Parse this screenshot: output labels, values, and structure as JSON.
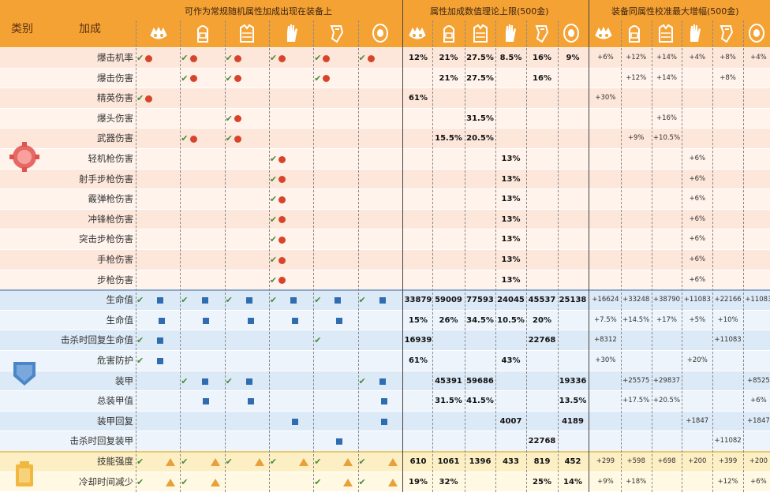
{
  "header": {
    "category_label": "类别",
    "bonus_label": "加成",
    "section1_title": "可作为常规随机属性加成出现在装备上",
    "section2_title": "属性加成数值理论上限(500金)",
    "section3_title": "装备同属性校准最大增幅(500金)"
  },
  "gear_icons": [
    "mask-icon",
    "backpack-icon",
    "vest-icon",
    "gloves-icon",
    "holster-icon",
    "kneepads-icon"
  ],
  "categories": [
    {
      "name": "offense",
      "icon": "offense-category-icon",
      "color": "#e0514f"
    },
    {
      "name": "defense",
      "icon": "defense-category-icon",
      "color": "#4a86c8"
    },
    {
      "name": "skill",
      "icon": "skill-category-icon",
      "color": "#f0b840"
    }
  ],
  "rows": [
    {
      "label": "爆击机率",
      "cat": "offense",
      "marks": [
        [
          1,
          1
        ],
        [
          1,
          1
        ],
        [
          1,
          1
        ],
        [
          1,
          1
        ],
        [
          1,
          1
        ],
        [
          1,
          1
        ]
      ],
      "max": [
        "12%",
        "21%",
        "27.5%",
        "8.5%",
        "16%",
        "9%"
      ],
      "inc": [
        "+6%",
        "+12%",
        "+14%",
        "+4%",
        "+8%",
        "+4%"
      ]
    },
    {
      "label": "爆击伤害",
      "cat": "offense",
      "marks": [
        [
          0,
          0
        ],
        [
          1,
          1
        ],
        [
          1,
          1
        ],
        [
          0,
          0
        ],
        [
          1,
          1
        ],
        [
          0,
          0
        ]
      ],
      "max": [
        "",
        "21%",
        "27.5%",
        "",
        "16%",
        ""
      ],
      "inc": [
        "",
        "+12%",
        "+14%",
        "",
        "+8%",
        ""
      ]
    },
    {
      "label": "精英伤害",
      "cat": "offense",
      "marks": [
        [
          1,
          1
        ],
        [
          0,
          0
        ],
        [
          0,
          0
        ],
        [
          0,
          0
        ],
        [
          0,
          0
        ],
        [
          0,
          0
        ]
      ],
      "max": [
        "61%",
        "",
        "",
        "",
        "",
        ""
      ],
      "inc": [
        "+30%",
        "",
        "",
        "",
        "",
        ""
      ]
    },
    {
      "label": "爆头伤害",
      "cat": "offense",
      "marks": [
        [
          0,
          0
        ],
        [
          0,
          0
        ],
        [
          1,
          1
        ],
        [
          0,
          0
        ],
        [
          0,
          0
        ],
        [
          0,
          0
        ]
      ],
      "max": [
        "",
        "",
        "31.5%",
        "",
        "",
        ""
      ],
      "inc": [
        "",
        "",
        "+16%",
        "",
        "",
        ""
      ]
    },
    {
      "label": "武器伤害",
      "cat": "offense",
      "marks": [
        [
          0,
          0
        ],
        [
          1,
          1
        ],
        [
          1,
          1
        ],
        [
          0,
          0
        ],
        [
          0,
          0
        ],
        [
          0,
          0
        ]
      ],
      "max": [
        "",
        "15.5%",
        "20.5%",
        "",
        "",
        ""
      ],
      "inc": [
        "",
        "+9%",
        "+10.5%",
        "",
        "",
        ""
      ]
    },
    {
      "label": "轻机枪伤害",
      "cat": "offense",
      "marks": [
        [
          0,
          0
        ],
        [
          0,
          0
        ],
        [
          0,
          0
        ],
        [
          1,
          1
        ],
        [
          0,
          0
        ],
        [
          0,
          0
        ]
      ],
      "max": [
        "",
        "",
        "",
        "13%",
        "",
        ""
      ],
      "inc": [
        "",
        "",
        "",
        "+6%",
        "",
        ""
      ]
    },
    {
      "label": "射手步枪伤害",
      "cat": "offense",
      "marks": [
        [
          0,
          0
        ],
        [
          0,
          0
        ],
        [
          0,
          0
        ],
        [
          1,
          1
        ],
        [
          0,
          0
        ],
        [
          0,
          0
        ]
      ],
      "max": [
        "",
        "",
        "",
        "13%",
        "",
        ""
      ],
      "inc": [
        "",
        "",
        "",
        "+6%",
        "",
        ""
      ]
    },
    {
      "label": "霰弹枪伤害",
      "cat": "offense",
      "marks": [
        [
          0,
          0
        ],
        [
          0,
          0
        ],
        [
          0,
          0
        ],
        [
          1,
          1
        ],
        [
          0,
          0
        ],
        [
          0,
          0
        ]
      ],
      "max": [
        "",
        "",
        "",
        "13%",
        "",
        ""
      ],
      "inc": [
        "",
        "",
        "",
        "+6%",
        "",
        ""
      ]
    },
    {
      "label": "冲锋枪伤害",
      "cat": "offense",
      "marks": [
        [
          0,
          0
        ],
        [
          0,
          0
        ],
        [
          0,
          0
        ],
        [
          1,
          1
        ],
        [
          0,
          0
        ],
        [
          0,
          0
        ]
      ],
      "max": [
        "",
        "",
        "",
        "13%",
        "",
        ""
      ],
      "inc": [
        "",
        "",
        "",
        "+6%",
        "",
        ""
      ]
    },
    {
      "label": "突击步枪伤害",
      "cat": "offense",
      "marks": [
        [
          0,
          0
        ],
        [
          0,
          0
        ],
        [
          0,
          0
        ],
        [
          1,
          1
        ],
        [
          0,
          0
        ],
        [
          0,
          0
        ]
      ],
      "max": [
        "",
        "",
        "",
        "13%",
        "",
        ""
      ],
      "inc": [
        "",
        "",
        "",
        "+6%",
        "",
        ""
      ]
    },
    {
      "label": "手枪伤害",
      "cat": "offense",
      "marks": [
        [
          0,
          0
        ],
        [
          0,
          0
        ],
        [
          0,
          0
        ],
        [
          1,
          1
        ],
        [
          0,
          0
        ],
        [
          0,
          0
        ]
      ],
      "max": [
        "",
        "",
        "",
        "13%",
        "",
        ""
      ],
      "inc": [
        "",
        "",
        "",
        "+6%",
        "",
        ""
      ]
    },
    {
      "label": "步枪伤害",
      "cat": "offense",
      "marks": [
        [
          0,
          0
        ],
        [
          0,
          0
        ],
        [
          0,
          0
        ],
        [
          1,
          1
        ],
        [
          0,
          0
        ],
        [
          0,
          0
        ]
      ],
      "max": [
        "",
        "",
        "",
        "13%",
        "",
        ""
      ],
      "inc": [
        "",
        "",
        "",
        "+6%",
        "",
        ""
      ]
    },
    {
      "label": "生命值",
      "cat": "defense",
      "marks": [
        [
          1,
          1
        ],
        [
          1,
          1
        ],
        [
          1,
          1
        ],
        [
          1,
          1
        ],
        [
          1,
          1
        ],
        [
          1,
          1
        ]
      ],
      "max": [
        "33879",
        "59009",
        "77593",
        "24045",
        "45537",
        "25138"
      ],
      "inc": [
        "+16624",
        "+33248",
        "+38790",
        "+11083",
        "+22166",
        "+11083"
      ]
    },
    {
      "label": "生命值",
      "cat": "defense",
      "marks": [
        [
          0,
          1
        ],
        [
          0,
          1
        ],
        [
          0,
          1
        ],
        [
          0,
          1
        ],
        [
          0,
          1
        ],
        [
          0,
          0
        ]
      ],
      "max": [
        "15%",
        "26%",
        "34.5%",
        "10.5%",
        "20%",
        ""
      ],
      "inc": [
        "+7.5%",
        "+14.5%",
        "+17%",
        "+5%",
        "+10%",
        ""
      ]
    },
    {
      "label": "击杀时回复生命值",
      "cat": "defense",
      "marks": [
        [
          1,
          1
        ],
        [
          0,
          0
        ],
        [
          0,
          0
        ],
        [
          0,
          0
        ],
        [
          1,
          0
        ],
        [
          0,
          0
        ]
      ],
      "max": [
        "16939",
        "",
        "",
        "",
        "22768",
        ""
      ],
      "inc": [
        "+8312",
        "",
        "",
        "",
        "+11083",
        ""
      ]
    },
    {
      "label": "危害防护",
      "cat": "defense",
      "marks": [
        [
          1,
          1
        ],
        [
          0,
          0
        ],
        [
          0,
          0
        ],
        [
          0,
          0
        ],
        [
          0,
          0
        ],
        [
          0,
          0
        ]
      ],
      "max": [
        "61%",
        "",
        "",
        "43%",
        "",
        ""
      ],
      "inc": [
        "+30%",
        "",
        "",
        "+20%",
        "",
        ""
      ]
    },
    {
      "label": "装甲",
      "cat": "defense",
      "marks": [
        [
          0,
          0
        ],
        [
          1,
          1
        ],
        [
          1,
          1
        ],
        [
          0,
          0
        ],
        [
          0,
          0
        ],
        [
          1,
          1
        ]
      ],
      "max": [
        "",
        "45391",
        "59686",
        "",
        "",
        "19336"
      ],
      "inc": [
        "",
        "+25575",
        "+29837",
        "",
        "",
        "+8525"
      ]
    },
    {
      "label": "总装甲值",
      "cat": "defense",
      "marks": [
        [
          0,
          0
        ],
        [
          0,
          1
        ],
        [
          0,
          1
        ],
        [
          0,
          0
        ],
        [
          0,
          0
        ],
        [
          0,
          1
        ]
      ],
      "max": [
        "",
        "31.5%",
        "41.5%",
        "",
        "",
        "13.5%"
      ],
      "inc": [
        "",
        "+17.5%",
        "+20.5%",
        "",
        "",
        "+6%"
      ]
    },
    {
      "label": "装甲回复",
      "cat": "defense",
      "marks": [
        [
          0,
          0
        ],
        [
          0,
          0
        ],
        [
          0,
          0
        ],
        [
          0,
          1
        ],
        [
          0,
          0
        ],
        [
          0,
          1
        ]
      ],
      "max": [
        "",
        "",
        "",
        "4007",
        "",
        "4189"
      ],
      "inc": [
        "",
        "",
        "",
        "+1847",
        "",
        "+1847"
      ]
    },
    {
      "label": "击杀时回复装甲",
      "cat": "defense",
      "marks": [
        [
          0,
          0
        ],
        [
          0,
          0
        ],
        [
          0,
          0
        ],
        [
          0,
          0
        ],
        [
          0,
          1
        ],
        [
          0,
          0
        ]
      ],
      "max": [
        "",
        "",
        "",
        "",
        "22768",
        ""
      ],
      "inc": [
        "",
        "",
        "",
        "",
        "+11082",
        ""
      ]
    },
    {
      "label": "技能强度",
      "cat": "skill",
      "marks": [
        [
          1,
          2
        ],
        [
          1,
          2
        ],
        [
          1,
          2
        ],
        [
          1,
          2
        ],
        [
          1,
          2
        ],
        [
          1,
          2
        ]
      ],
      "max": [
        "610",
        "1061",
        "1396",
        "433",
        "819",
        "452"
      ],
      "inc": [
        "+299",
        "+598",
        "+698",
        "+200",
        "+399",
        "+200"
      ]
    },
    {
      "label": "冷却时间减少",
      "cat": "skill",
      "marks": [
        [
          1,
          2
        ],
        [
          1,
          2
        ],
        [
          0,
          0
        ],
        [
          0,
          0
        ],
        [
          1,
          2
        ],
        [
          1,
          2
        ]
      ],
      "max": [
        "19%",
        "32%",
        "",
        "",
        "25%",
        "14%"
      ],
      "inc": [
        "+9%",
        "+18%",
        "",
        "",
        "+12%",
        "+6%"
      ]
    }
  ],
  "colors": {
    "header": "#f5a234",
    "offense_row_a": "#fde6da",
    "offense_row_b": "#fff3ec",
    "defense_row_a": "#dce9f6",
    "defense_row_b": "#edf4fb",
    "skill_row_a": "#fdefc4",
    "skill_row_b": "#fff8e2"
  }
}
